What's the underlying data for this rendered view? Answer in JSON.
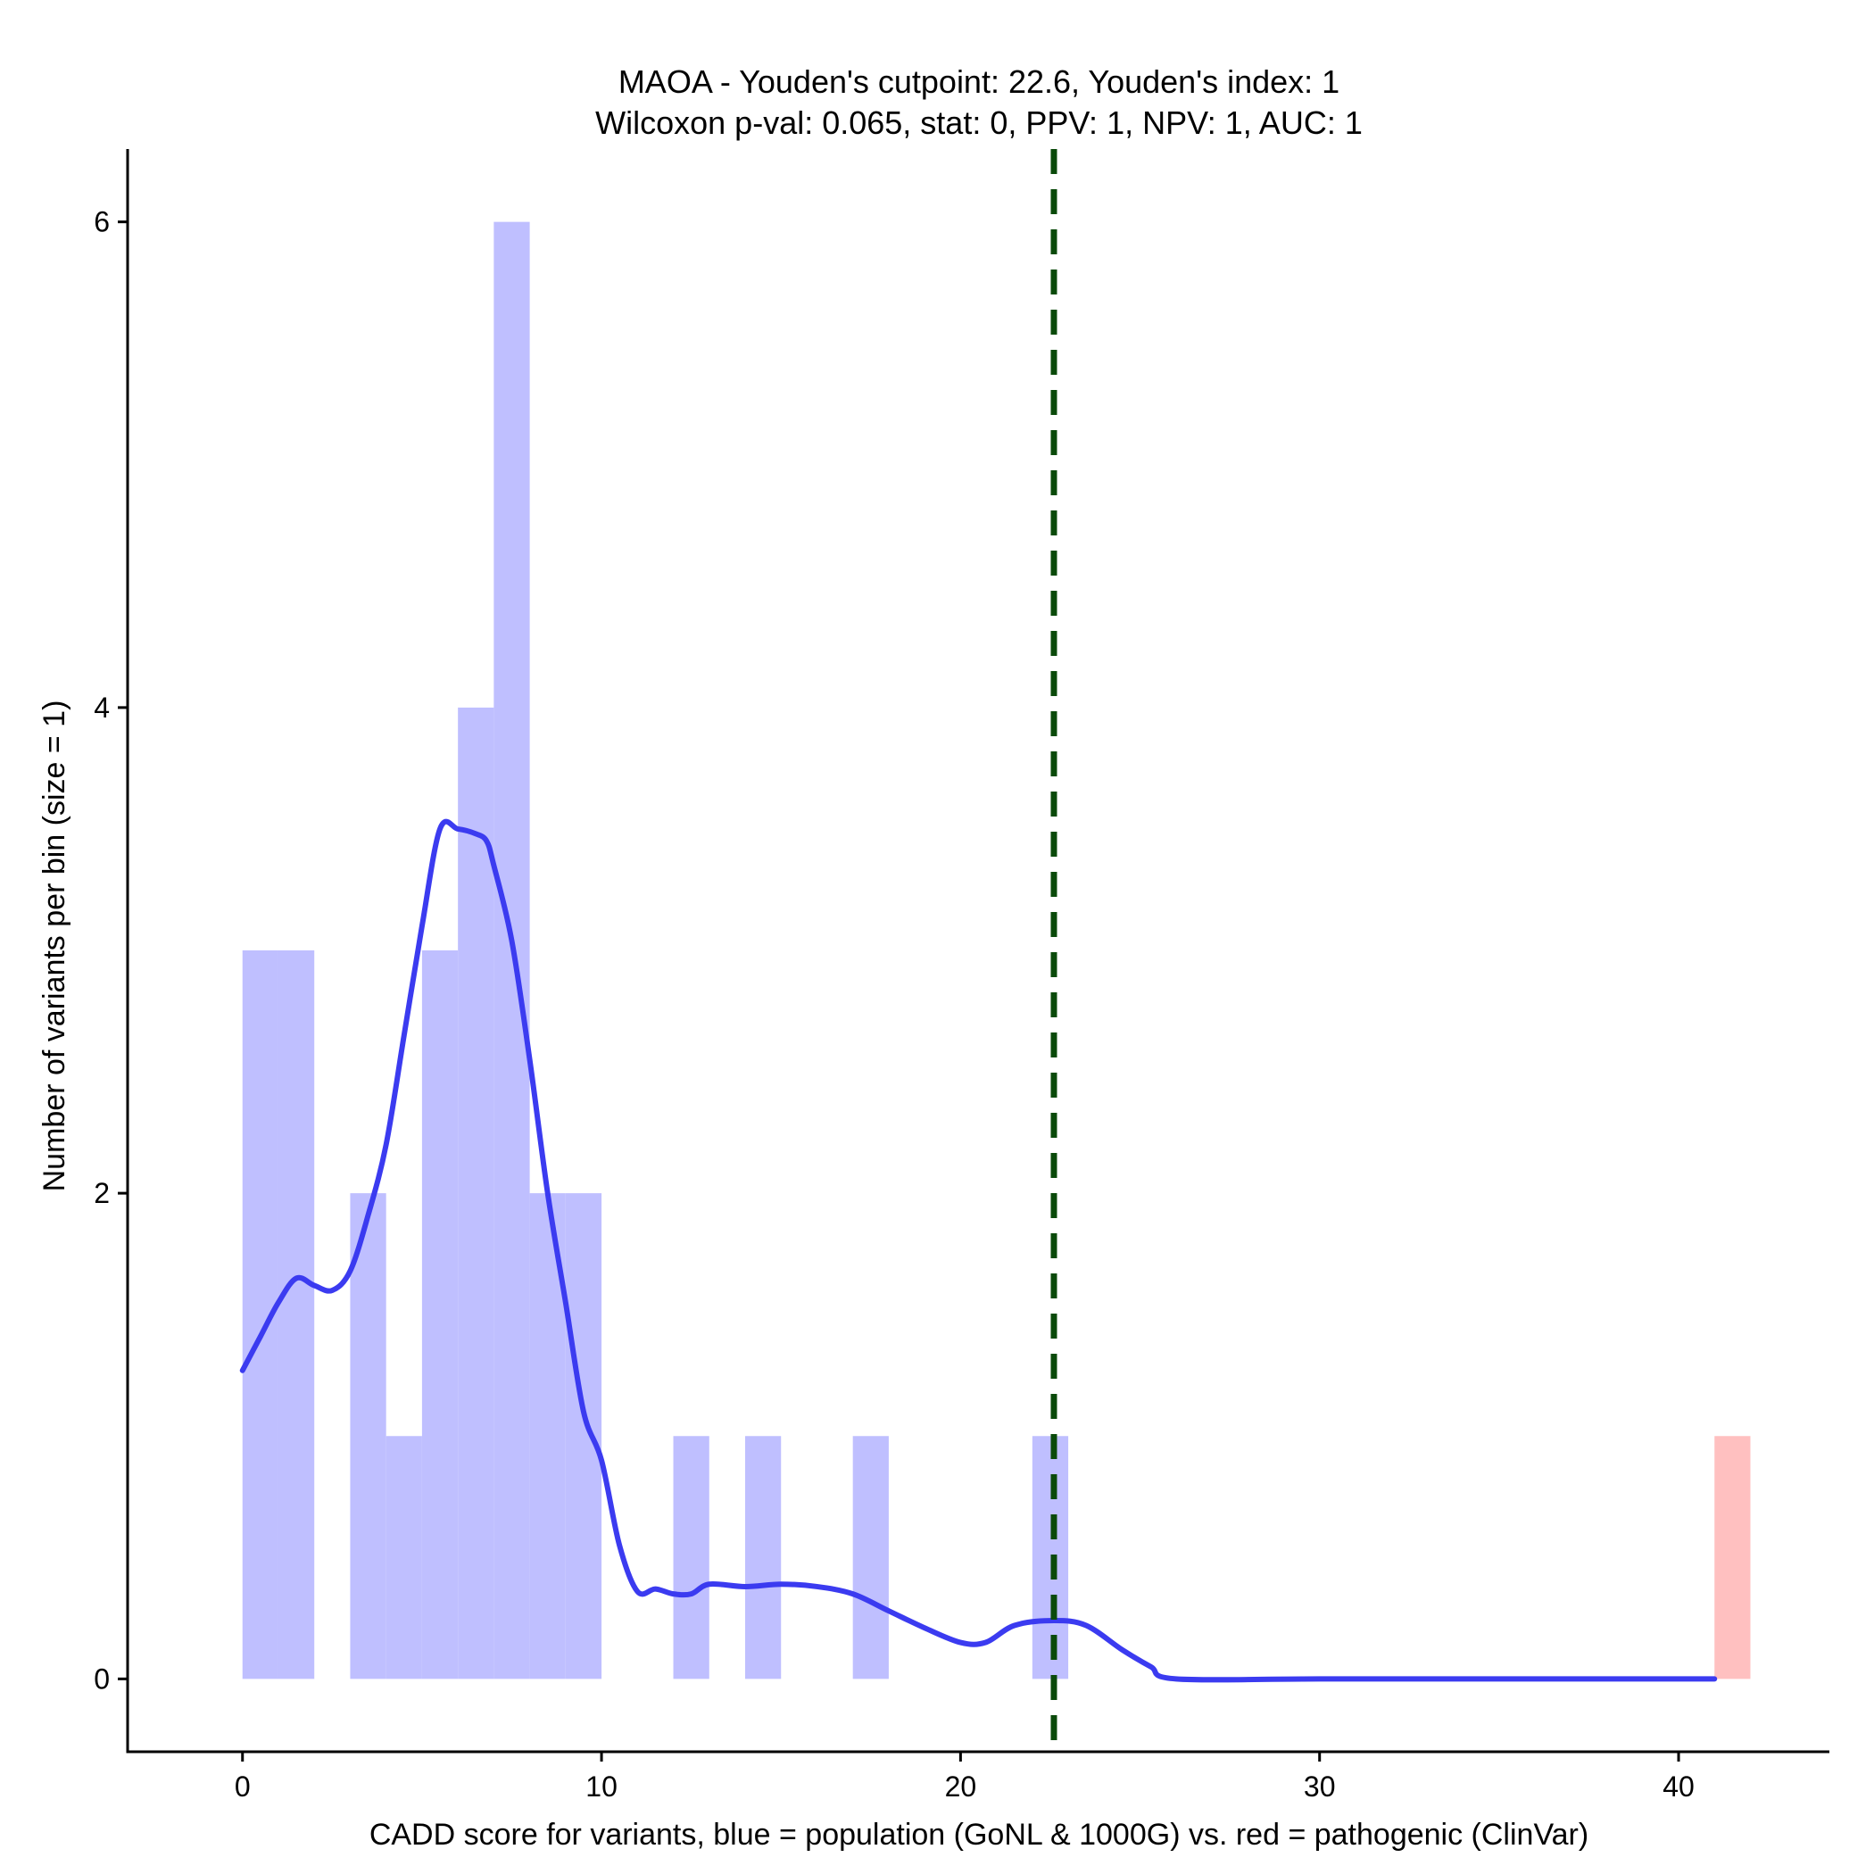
{
  "chart_data": {
    "type": "bar",
    "title": "MAOA - Youden's cutpoint: 22.6, Youden's index: 1",
    "subtitle": "Wilcoxon p-val: 0.065, stat: 0, PPV: 1, NPV: 1, AUC: 1",
    "xlabel": "CADD score for variants, blue = population (GoNL & 1000G) vs. red = pathogenic (ClinVar)",
    "ylabel": "Number of variants per bin (size = 1)",
    "xlim": [
      -3.2,
      44.2
    ],
    "ylim": [
      -0.3,
      6.3
    ],
    "xticks": [
      0,
      10,
      20,
      30,
      40
    ],
    "yticks": [
      0,
      2,
      4,
      6
    ],
    "grid": false,
    "colors": {
      "population": "#bfbfff",
      "pathogenic": "#ffc0c0",
      "density": "#3b3bf0",
      "cutpoint": "#0a4a0a"
    },
    "series": [
      {
        "bins": [
          {
            "x0": 0,
            "x1": 1,
            "count": 3
          },
          {
            "x0": 1,
            "x1": 2,
            "count": 3
          },
          {
            "x0": 3,
            "x1": 4,
            "count": 2
          },
          {
            "x0": 4,
            "x1": 5,
            "count": 1
          },
          {
            "x0": 5,
            "x1": 6,
            "count": 3
          },
          {
            "x0": 6,
            "x1": 7,
            "count": 4
          },
          {
            "x0": 7,
            "x1": 8,
            "count": 6
          },
          {
            "x0": 8,
            "x1": 9,
            "count": 2
          },
          {
            "x0": 9,
            "x1": 10,
            "count": 2
          },
          {
            "x0": 12,
            "x1": 13,
            "count": 1
          },
          {
            "x0": 14,
            "x1": 15,
            "count": 1
          },
          {
            "x0": 17,
            "x1": 18,
            "count": 1
          },
          {
            "x0": 22,
            "x1": 23,
            "count": 1
          }
        ]
      },
      {
        "bins": [
          {
            "x0": 41,
            "x1": 42,
            "count": 1
          }
        ]
      }
    ],
    "density_curve": {
      "x": [
        0,
        0.5,
        1,
        1.5,
        2,
        2.5,
        3,
        3.5,
        4,
        4.5,
        5,
        5.5,
        6,
        6.5,
        6.8,
        7,
        7.5,
        8,
        8.5,
        9,
        9.5,
        10,
        10.5,
        11,
        11.5,
        12,
        12.5,
        13,
        14,
        15,
        16,
        17,
        18,
        19,
        20,
        20.7,
        21.5,
        22.6,
        23.5,
        24.5,
        25.3,
        26,
        30,
        35,
        41
      ],
      "y": [
        1.27,
        1.41,
        1.55,
        1.65,
        1.62,
        1.6,
        1.68,
        1.91,
        2.2,
        2.65,
        3.1,
        3.5,
        3.5,
        3.48,
        3.45,
        3.35,
        3.04,
        2.55,
        2.0,
        1.55,
        1.1,
        0.9,
        0.55,
        0.36,
        0.37,
        0.35,
        0.35,
        0.39,
        0.38,
        0.39,
        0.38,
        0.35,
        0.28,
        0.21,
        0.15,
        0.15,
        0.22,
        0.24,
        0.22,
        0.12,
        0.05,
        0,
        0,
        0,
        0
      ]
    },
    "cutpoint": 22.6
  }
}
